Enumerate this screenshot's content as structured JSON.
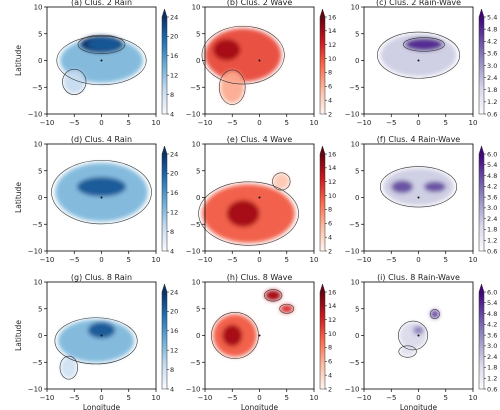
{
  "figure": {
    "xlabel": "Longitude",
    "ylabel": "Latitude",
    "ticks": [
      "−10",
      "−5",
      "0",
      "5",
      "10"
    ],
    "tick_values": [
      -10,
      -5,
      0,
      5,
      10
    ],
    "xlim": [
      -10,
      10
    ],
    "ylim": [
      -10,
      10
    ]
  },
  "colormaps": {
    "rain": [
      "#f7fbff",
      "#c6dbef",
      "#6baed6",
      "#2171b5",
      "#08306b"
    ],
    "wave": [
      "#fff5f0",
      "#fcbba1",
      "#fb6a4a",
      "#cb181d",
      "#67000d"
    ],
    "rainwave": [
      "#fcfbfd",
      "#dadaeb",
      "#9e9ac8",
      "#6a51a3",
      "#3f007d"
    ]
  },
  "chart_data": [
    {
      "type": "heatmap",
      "title": "(a) Clus. 2 Rain",
      "variable": "rain",
      "cluster": 2,
      "colorbar_ticks": [
        "4",
        "8",
        "12",
        "16",
        "20",
        "24"
      ],
      "range": [
        4,
        24
      ],
      "blobs": [
        {
          "x": 0,
          "y": 0,
          "rx": 7.6,
          "ry": 4.2,
          "w": 0.45
        },
        {
          "x": 0,
          "y": 3,
          "rx": 4,
          "ry": 1.6,
          "w": 1
        },
        {
          "x": -5,
          "y": -4,
          "rx": 2,
          "ry": 2.2,
          "w": 0.25
        }
      ],
      "core": [
        {
          "x": 0.5,
          "y": 3,
          "rx": 3,
          "ry": 1.2,
          "w": 1
        }
      ]
    },
    {
      "type": "heatmap",
      "title": "(b) Clus. 2 Wave",
      "variable": "wave",
      "cluster": 2,
      "colorbar_ticks": [
        "2",
        "4",
        "6",
        "8",
        "10",
        "12",
        "14",
        "16"
      ],
      "range": [
        2,
        16
      ],
      "blobs": [
        {
          "x": -3,
          "y": 1,
          "rx": 7,
          "ry": 5,
          "w": 0.6
        },
        {
          "x": -5,
          "y": -5,
          "rx": 2.2,
          "ry": 3,
          "w": 0.3
        }
      ],
      "core": [
        {
          "x": -6,
          "y": 2,
          "rx": 2.5,
          "ry": 2,
          "w": 1
        }
      ]
    },
    {
      "type": "heatmap",
      "title": "(c) Clus. 2 Rain-Wave",
      "variable": "rainwave",
      "cluster": 2,
      "colorbar_ticks": [
        "0.6",
        "1.2",
        "1.8",
        "2.4",
        "3.0",
        "3.6",
        "4.2",
        "4.8",
        "5.4"
      ],
      "range": [
        0.6,
        5.4
      ],
      "blobs": [
        {
          "x": 0,
          "y": 1,
          "rx": 7,
          "ry": 4,
          "w": 0.3
        },
        {
          "x": 1,
          "y": 3,
          "rx": 3.5,
          "ry": 1.2,
          "w": 1
        }
      ],
      "core": [
        {
          "x": 1,
          "y": 3,
          "rx": 3.5,
          "ry": 1,
          "w": 1
        }
      ]
    },
    {
      "type": "heatmap",
      "title": "(d) Clus. 4 Rain",
      "variable": "rain",
      "cluster": 4,
      "colorbar_ticks": [
        "4",
        "8",
        "12",
        "16",
        "20",
        "24"
      ],
      "range": [
        4,
        24
      ],
      "blobs": [
        {
          "x": 0,
          "y": 1,
          "rx": 8.5,
          "ry": 5.5,
          "w": 0.45
        }
      ],
      "core": [
        {
          "x": 0,
          "y": 2,
          "rx": 4.5,
          "ry": 1.8,
          "w": 1
        }
      ]
    },
    {
      "type": "heatmap",
      "title": "(e) Clus. 4 Wave",
      "variable": "wave",
      "cluster": 4,
      "colorbar_ticks": [
        "2",
        "4",
        "6",
        "8",
        "10",
        "12",
        "14",
        "16"
      ],
      "range": [
        2,
        16
      ],
      "blobs": [
        {
          "x": -2,
          "y": -3,
          "rx": 8.5,
          "ry": 5.5,
          "w": 0.55
        },
        {
          "x": 4,
          "y": 3,
          "rx": 1.5,
          "ry": 1.5,
          "w": 0.2
        }
      ],
      "core": [
        {
          "x": -3,
          "y": -3,
          "rx": 3,
          "ry": 2.5,
          "w": 1
        }
      ]
    },
    {
      "type": "heatmap",
      "title": "(f) Clus. 4 Rain-Wave",
      "variable": "rainwave",
      "cluster": 4,
      "colorbar_ticks": [
        "0.6",
        "1.2",
        "1.8",
        "2.4",
        "3.0",
        "3.6",
        "4.2",
        "4.8",
        "5.4",
        "6.0"
      ],
      "range": [
        0.6,
        6.0
      ],
      "blobs": [
        {
          "x": 0,
          "y": 2,
          "rx": 6.5,
          "ry": 3.5,
          "w": 0.3
        }
      ],
      "core": [
        {
          "x": -3,
          "y": 2,
          "rx": 2,
          "ry": 1.2,
          "w": 0.9
        },
        {
          "x": 3,
          "y": 2,
          "rx": 2,
          "ry": 1,
          "w": 0.9
        }
      ]
    },
    {
      "type": "heatmap",
      "title": "(g) Clus. 8 Rain",
      "variable": "rain",
      "cluster": 8,
      "colorbar_ticks": [
        "4",
        "8",
        "12",
        "16",
        "20",
        "24"
      ],
      "range": [
        4,
        24
      ],
      "blobs": [
        {
          "x": -1,
          "y": -1,
          "rx": 7,
          "ry": 4,
          "w": 0.45
        },
        {
          "x": -6,
          "y": -6,
          "rx": 1.5,
          "ry": 2,
          "w": 0.2
        }
      ],
      "core": [
        {
          "x": 0,
          "y": 1,
          "rx": 2.5,
          "ry": 1.5,
          "w": 1
        }
      ]
    },
    {
      "type": "heatmap",
      "title": "(h) Clus. 8 Wave",
      "variable": "wave",
      "cluster": 8,
      "colorbar_ticks": [
        "2",
        "4",
        "6",
        "8",
        "10",
        "12",
        "14",
        "16"
      ],
      "range": [
        2,
        16
      ],
      "blobs": [
        {
          "x": -4.5,
          "y": 0,
          "rx": 4,
          "ry": 4,
          "w": 0.55
        },
        {
          "x": 2.5,
          "y": 7.5,
          "rx": 1.5,
          "ry": 1,
          "w": 0.8
        },
        {
          "x": 5,
          "y": 5,
          "rx": 1.2,
          "ry": 0.8,
          "w": 0.7
        }
      ],
      "core": [
        {
          "x": -5,
          "y": 0,
          "rx": 1.8,
          "ry": 2,
          "w": 1
        },
        {
          "x": 2.5,
          "y": 7.5,
          "rx": 1.2,
          "ry": 0.8,
          "w": 1
        }
      ]
    },
    {
      "type": "heatmap",
      "title": "(i) Clus. 8 Rain-Wave",
      "variable": "rainwave",
      "cluster": 8,
      "colorbar_ticks": [
        "0.6",
        "1.2",
        "1.8",
        "2.4",
        "3.0",
        "3.6",
        "4.2",
        "4.8",
        "5.4",
        "6.0"
      ],
      "range": [
        0.6,
        6.0
      ],
      "blobs": [
        {
          "x": -1,
          "y": 0,
          "rx": 2.5,
          "ry": 2.5,
          "w": 0.25
        },
        {
          "x": 3,
          "y": 4,
          "rx": 0.8,
          "ry": 0.8,
          "w": 0.8
        },
        {
          "x": -2,
          "y": -3,
          "rx": 1.5,
          "ry": 1,
          "w": 0.2
        }
      ],
      "core": [
        {
          "x": 0,
          "y": 1,
          "rx": 1,
          "ry": 0.8,
          "w": 0.7
        }
      ]
    }
  ]
}
